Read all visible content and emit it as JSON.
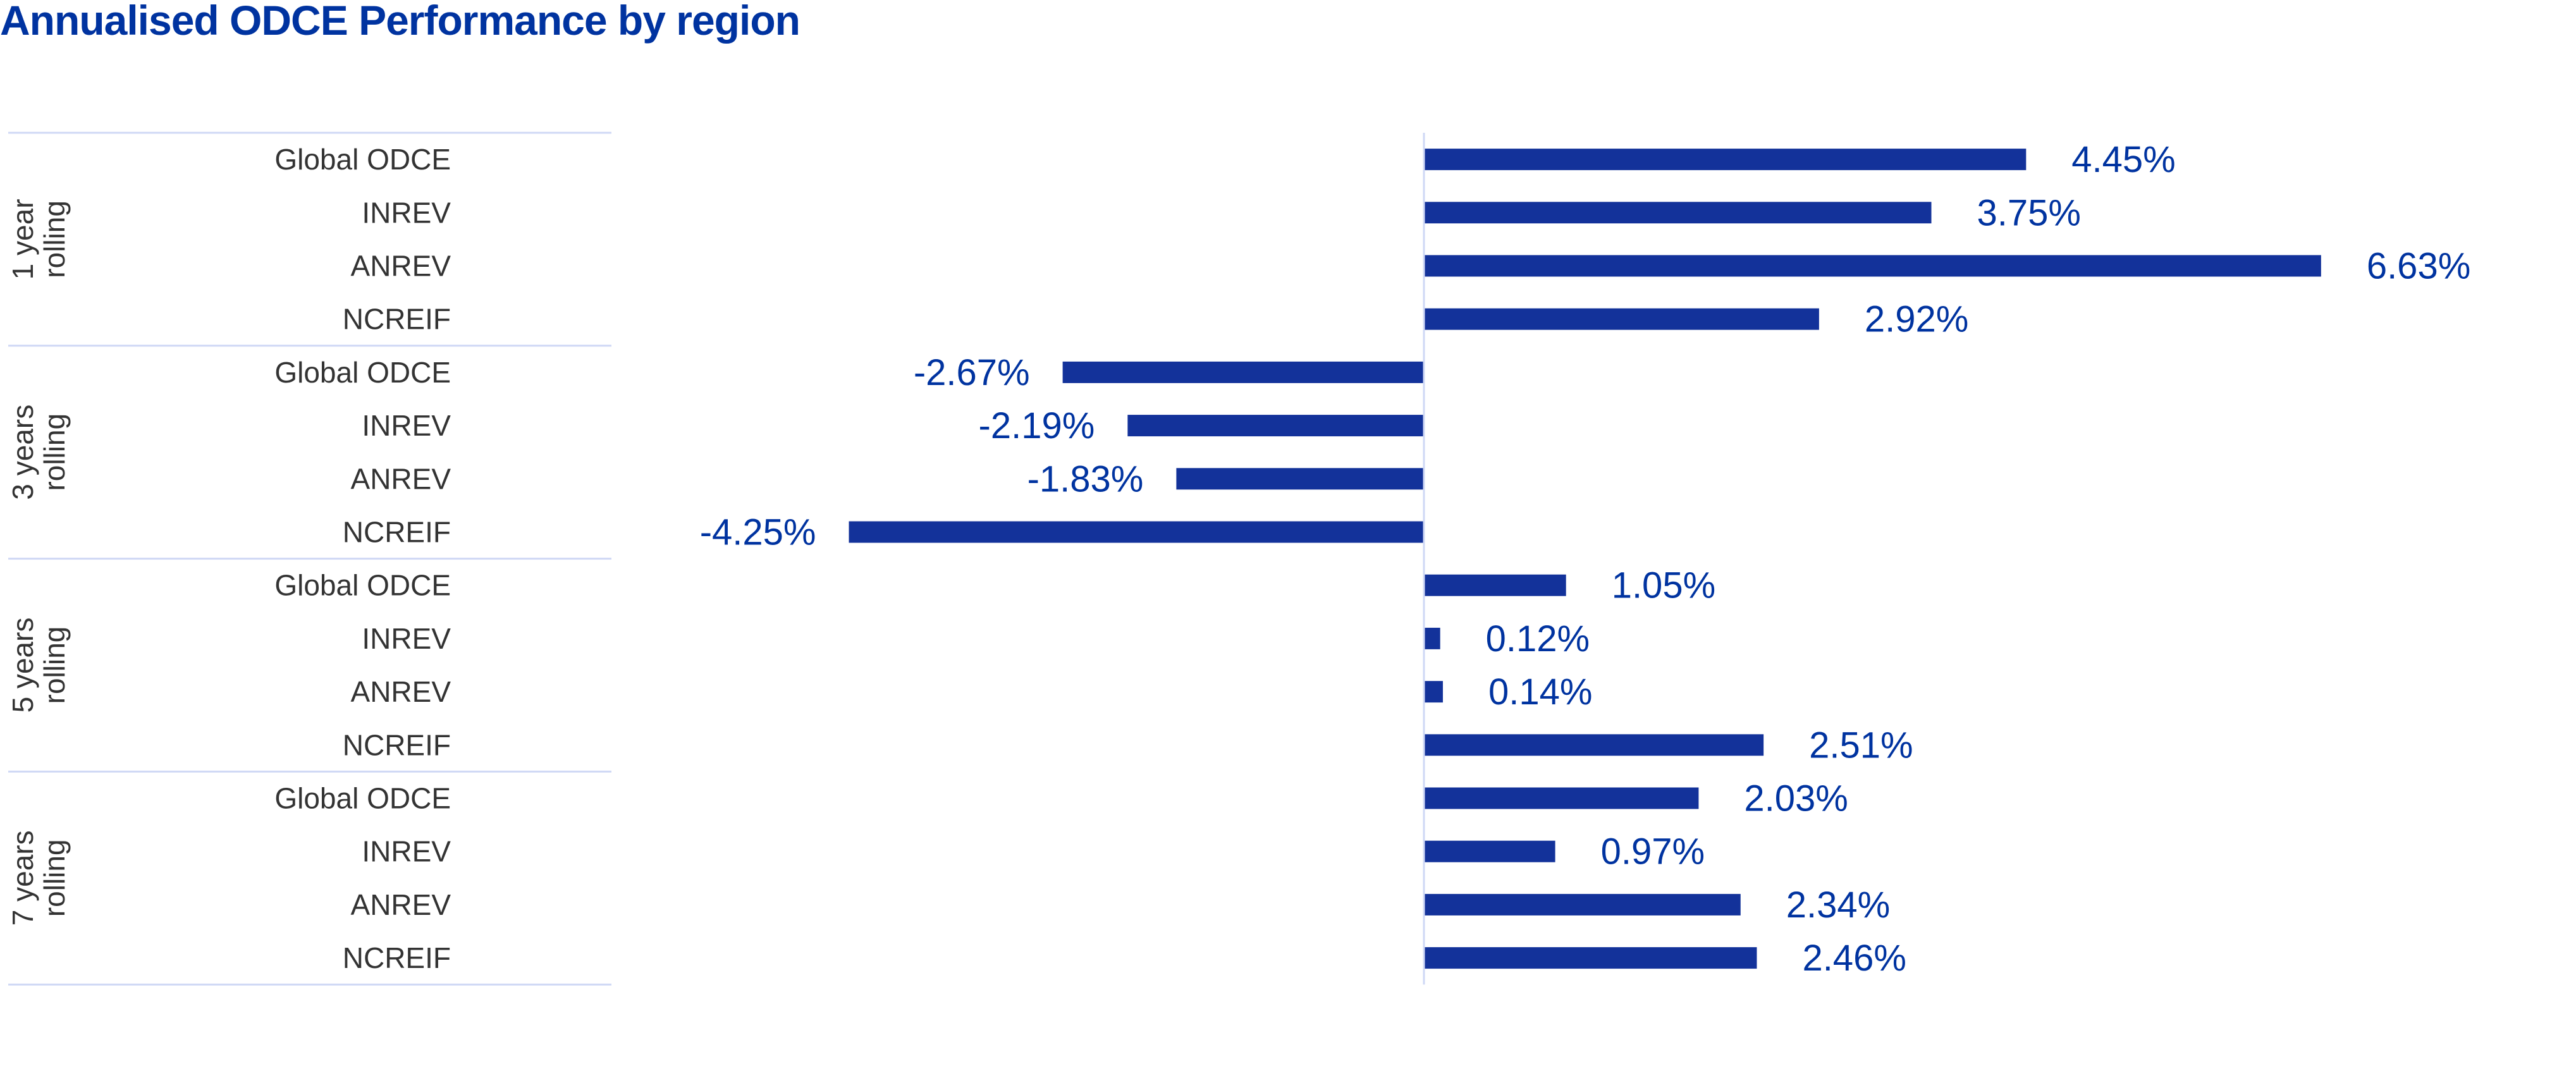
{
  "chart_data": {
    "type": "bar",
    "orientation": "horizontal",
    "title": "Annualised ODCE Performance by region",
    "xlabel": "",
    "ylabel": "",
    "unit": "%",
    "grid": false,
    "legend": "none",
    "groups": [
      {
        "label": [
          "1 year",
          "rolling"
        ],
        "categories": [
          "Global ODCE",
          "INREV",
          "ANREV",
          "NCREIF"
        ],
        "values": [
          4.45,
          3.75,
          6.63,
          2.92
        ],
        "labels": [
          "4.45%",
          "3.75%",
          "6.63%",
          "2.92%"
        ]
      },
      {
        "label": [
          "3 years",
          "rolling"
        ],
        "categories": [
          "Global ODCE",
          "INREV",
          "ANREV",
          "NCREIF"
        ],
        "values": [
          -2.67,
          -2.19,
          -1.83,
          -4.25
        ],
        "labels": [
          "-2.67%",
          "-2.19%",
          "-1.83%",
          "-4.25%"
        ]
      },
      {
        "label": [
          "5 years",
          "rolling"
        ],
        "categories": [
          "Global ODCE",
          "INREV",
          "ANREV",
          "NCREIF"
        ],
        "values": [
          1.05,
          0.12,
          0.14,
          2.51
        ],
        "labels": [
          "1.05%",
          "0.12%",
          "0.14%",
          "2.51%"
        ]
      },
      {
        "label": [
          "7 years",
          "rolling"
        ],
        "categories": [
          "Global ODCE",
          "INREV",
          "ANREV",
          "NCREIF"
        ],
        "values": [
          2.03,
          0.97,
          2.34,
          2.46
        ],
        "labels": [
          "2.03%",
          "0.97%",
          "2.34%",
          "2.46%"
        ]
      }
    ],
    "colors": {
      "bar": "#13329a",
      "value_text": "#0033a0",
      "category_text": "#333333",
      "rule": "#cfd8f5",
      "axis": "#cfd8f5"
    }
  }
}
